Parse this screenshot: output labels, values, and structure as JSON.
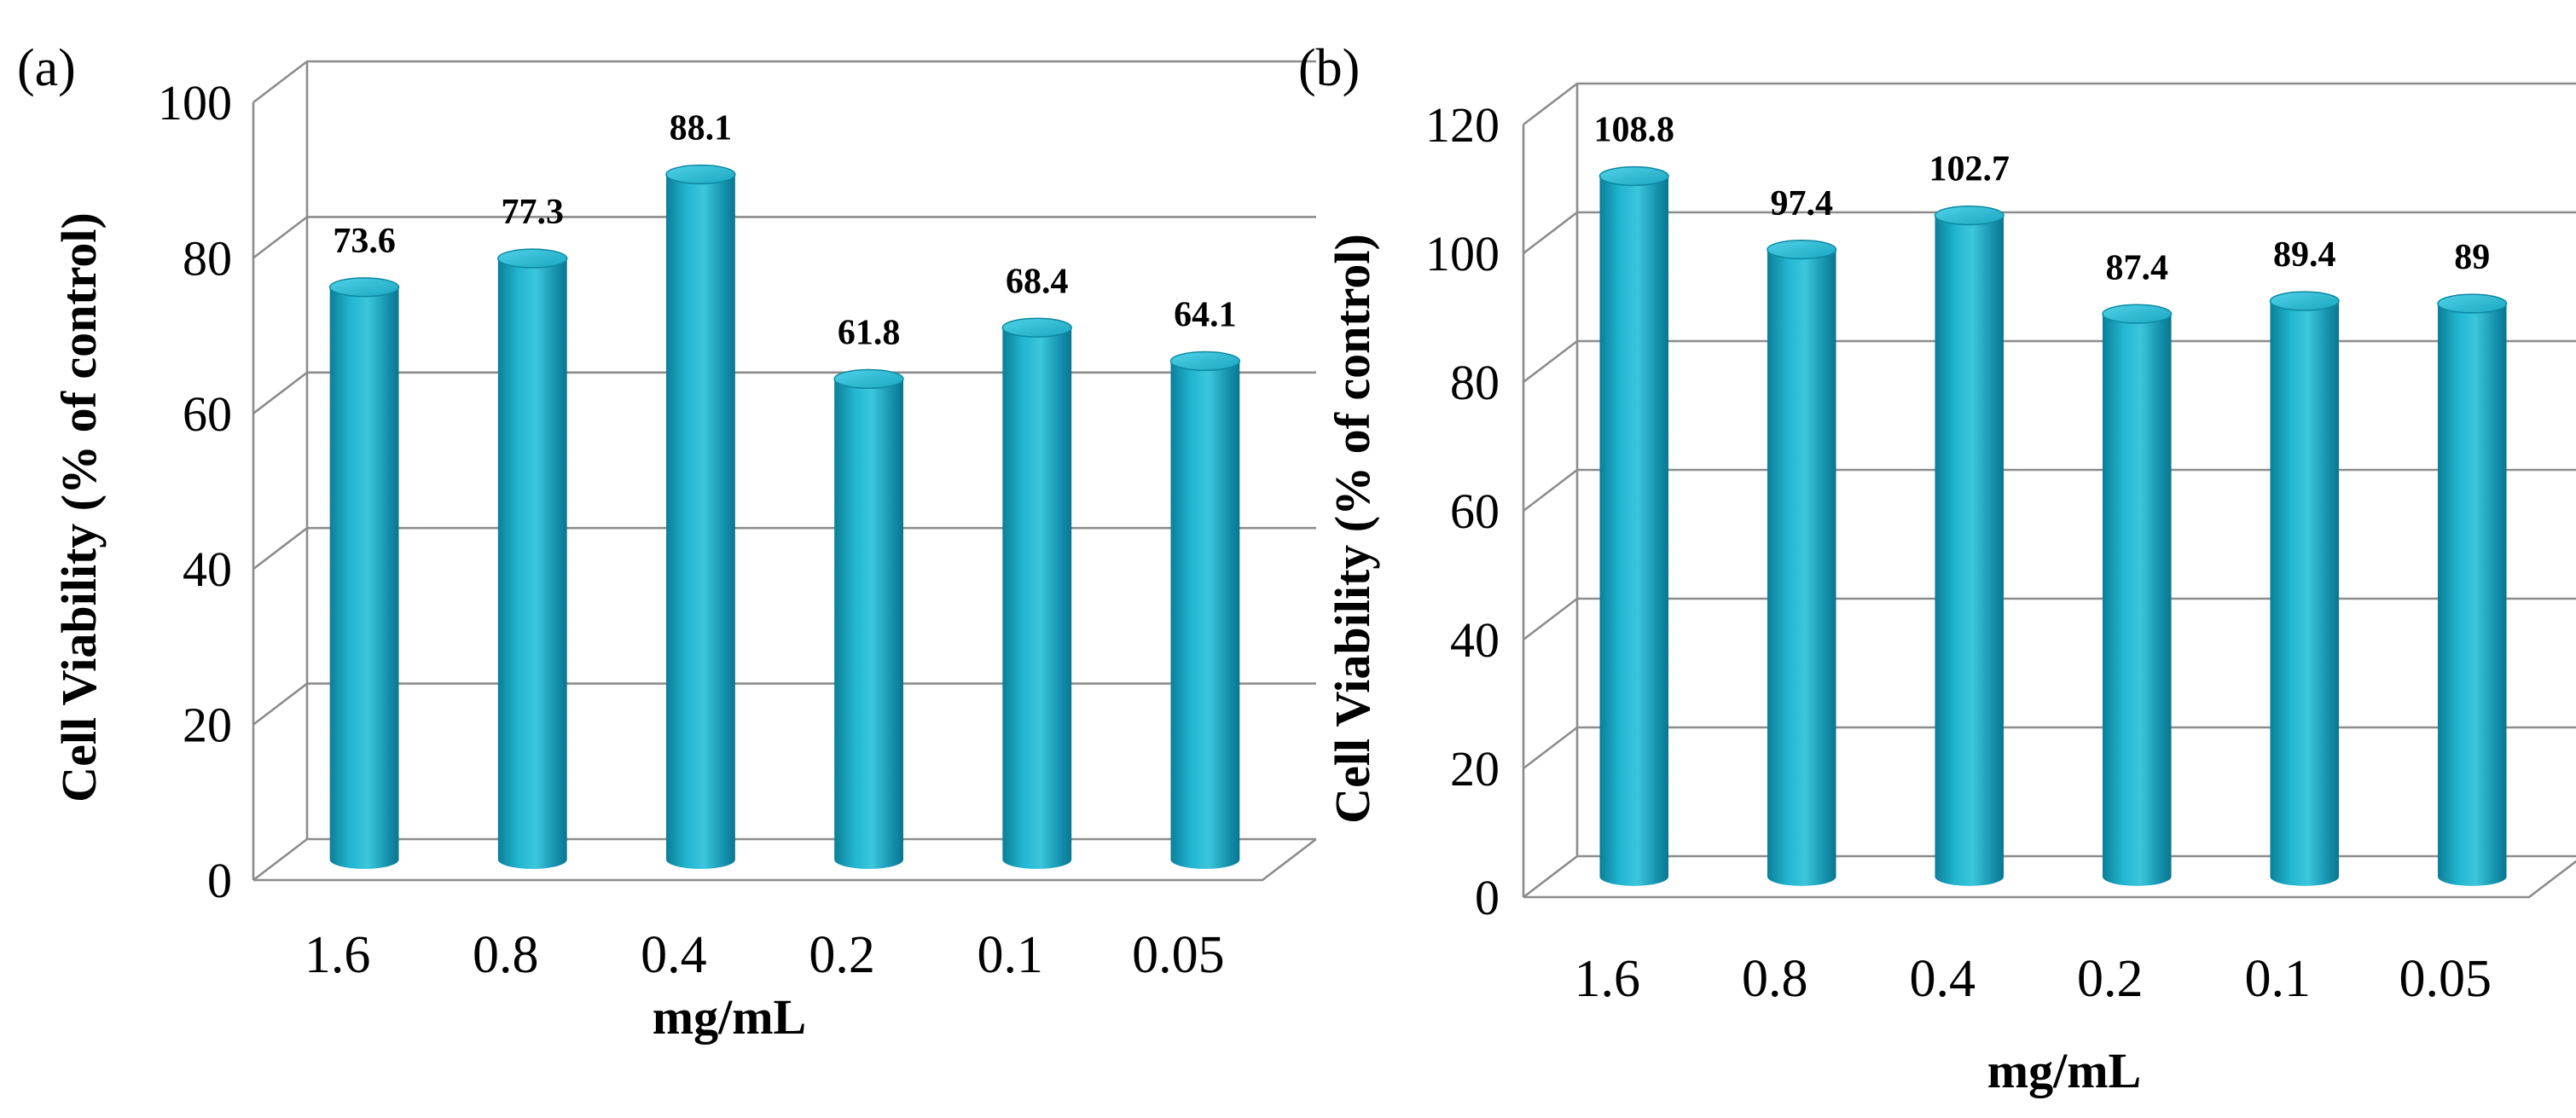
{
  "chart_data": [
    {
      "panel": "(a)",
      "type": "bar",
      "style": "3d-cylinder",
      "bar_color": "#1aa6c0",
      "categories": [
        "1.6",
        "0.8",
        "0.4",
        "0.2",
        "0.1",
        "0.05"
      ],
      "values": [
        73.6,
        77.3,
        88.1,
        61.8,
        68.4,
        64.1
      ],
      "data_labels": [
        "73.6",
        "77.3",
        "88.1",
        "61.8",
        "68.4",
        "64.1"
      ],
      "xlabel": "mg/mL",
      "ylabel": "Cell Viability (% of control)",
      "ylim": [
        0,
        100
      ],
      "yticks": [
        "0",
        "20",
        "40",
        "60",
        "80",
        "100"
      ],
      "grid": true
    },
    {
      "panel": "(b)",
      "type": "bar",
      "style": "3d-cylinder",
      "bar_color": "#1aa6c0",
      "categories": [
        "1.6",
        "0.8",
        "0.4",
        "0.2",
        "0.1",
        "0.05"
      ],
      "values": [
        108.8,
        97.4,
        102.7,
        87.4,
        89.4,
        89
      ],
      "data_labels": [
        "108.8",
        "97.4",
        "102.7",
        "87.4",
        "89.4",
        "89"
      ],
      "xlabel": "mg/mL",
      "ylabel": "Cell Viability (% of control)",
      "ylim": [
        0,
        120
      ],
      "yticks": [
        "0",
        "20",
        "40",
        "60",
        "80",
        "100",
        "120"
      ],
      "grid": true
    }
  ]
}
